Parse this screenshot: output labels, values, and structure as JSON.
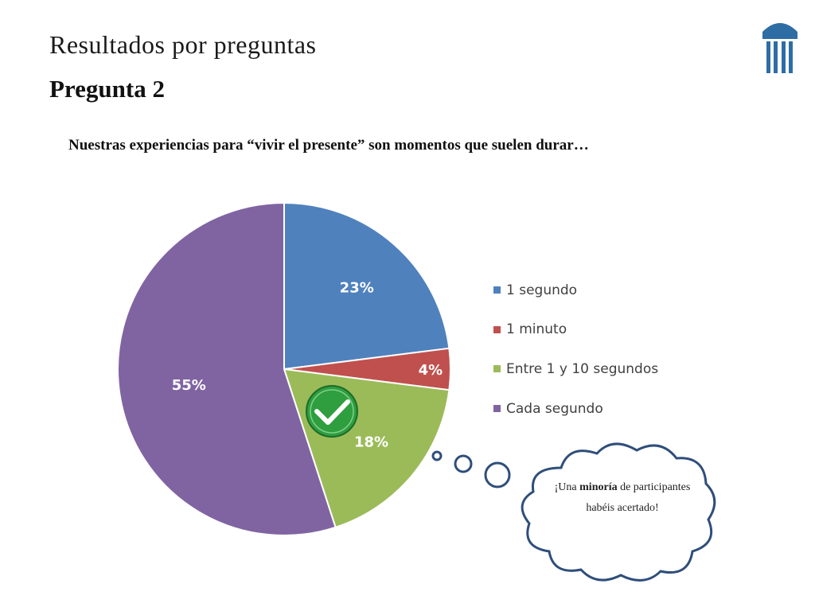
{
  "slide": {
    "title": "Resultados por preguntas",
    "subtitle": "Pregunta 2",
    "question": "Nuestras experiencias para “vivir el presente” son momentos que suelen durar…"
  },
  "cloud": {
    "before": "¡Una ",
    "emphasis": "minoría",
    "after": " de participantes habéis acertado!"
  },
  "colors": {
    "logo": "#2e6da4",
    "cloud_stroke": "#2f4e7a",
    "check_green": "#2e9e3e"
  },
  "chart_data": {
    "type": "pie",
    "title": "",
    "categories": [
      "1 segundo",
      "1 minuto",
      "Entre 1 y 10 segundos",
      "Cada segundo"
    ],
    "values": [
      23,
      4,
      18,
      55
    ],
    "labels": [
      "23%",
      "4%",
      "18%",
      "55%"
    ],
    "colors": [
      "#4f81bd",
      "#c0504d",
      "#9bbb59",
      "#8064a2"
    ],
    "legend_position": "right",
    "correct_answer": "Entre 1 y 10 segundos"
  }
}
